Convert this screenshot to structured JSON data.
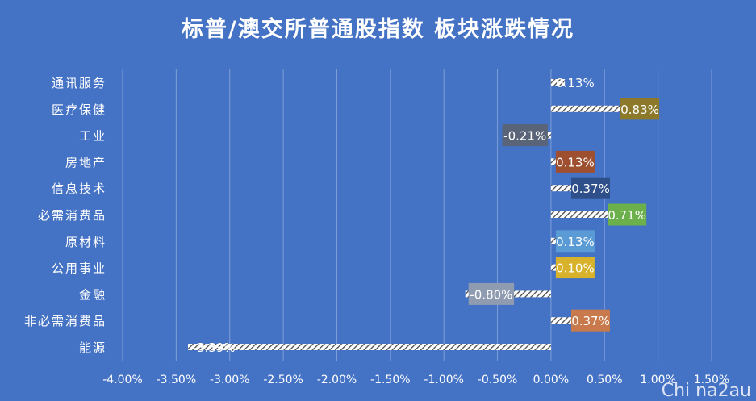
{
  "watermark": "Chi na2au",
  "chart_data": {
    "type": "bar",
    "orientation": "horizontal",
    "title": "标普/澳交所普通股指数 板块涨跌情况",
    "categories": [
      "通讯服务",
      "医疗保健",
      "工业",
      "房地产",
      "信息技术",
      "必需消费品",
      "原材料",
      "公用事业",
      "金融",
      "非必需消费品",
      "能源"
    ],
    "values": [
      0.13,
      0.83,
      -0.21,
      0.13,
      0.37,
      0.71,
      0.13,
      0.1,
      -0.8,
      0.37,
      -3.39
    ],
    "data_labels": [
      "0.13%",
      "0.83%",
      "-0.21%",
      "0.13%",
      "0.37%",
      "0.71%",
      "0.13%",
      "0.10%",
      "-0.80%",
      "0.37%",
      "-3.39%"
    ],
    "label_colors": [
      "#4472c4",
      "#8c7a2a",
      "#5a6478",
      "#9e4f2f",
      "#2e4f8a",
      "#6bb04a",
      "#5b9bd5",
      "#d7b22a",
      "#8f9bb0",
      "#c97a4c",
      "#4472c4"
    ],
    "xlim": [
      -4.0,
      1.5
    ],
    "x_ticks": [
      -4.0,
      -3.5,
      -3.0,
      -2.5,
      -2.0,
      -1.5,
      -1.0,
      -0.5,
      0.0,
      0.5,
      1.0,
      1.5
    ],
    "x_tick_labels": [
      "-4.00%",
      "-3.50%",
      "-3.00%",
      "-2.50%",
      "-2.00%",
      "-1.50%",
      "-1.00%",
      "-0.50%",
      "0.00%",
      "0.50%",
      "1.00%",
      "1.50%"
    ],
    "grid": true,
    "colors": {
      "background": "#4472c4",
      "gridline": "#7f9fd8",
      "text": "#ffffff",
      "bar_fill": "#ffffff"
    }
  }
}
